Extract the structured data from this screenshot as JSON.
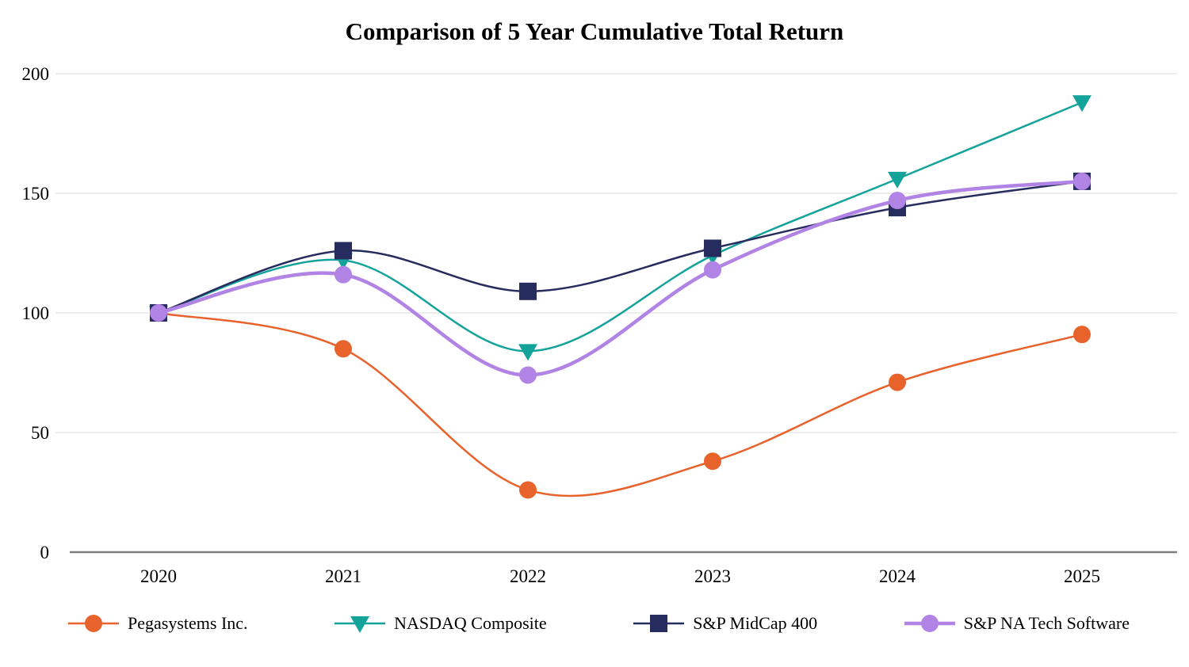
{
  "chart_data": {
    "type": "line",
    "title": "Comparison of 5 Year Cumulative Total Return",
    "xlabel": "",
    "ylabel": "",
    "categories": [
      "2020",
      "2021",
      "2022",
      "2023",
      "2024",
      "2025"
    ],
    "ylim": [
      0,
      200
    ],
    "yticks": [
      0,
      50,
      100,
      150,
      200
    ],
    "grid": true,
    "legend_position": "bottom",
    "series": [
      {
        "name": "Pegasystems Inc.",
        "marker": "circle",
        "color": "#E8622C",
        "line_width": 2.5,
        "values": [
          100,
          85,
          26,
          38,
          71,
          91
        ]
      },
      {
        "name": "NASDAQ Composite",
        "marker": "triangle-down",
        "color": "#14A39B",
        "line_width": 2.5,
        "values": [
          100,
          122,
          84,
          124,
          156,
          188
        ]
      },
      {
        "name": "S&P MidCap 400",
        "marker": "square",
        "color": "#272C5E",
        "line_width": 2.5,
        "values": [
          100,
          126,
          109,
          127,
          144,
          155
        ]
      },
      {
        "name": "S&P NA Tech Software",
        "marker": "circle",
        "color": "#B083E5",
        "line_width": 4.5,
        "values": [
          100,
          116,
          74,
          118,
          147,
          155
        ]
      }
    ],
    "axis_color": "#7F7F7F",
    "grid_color": "#E7E7E7",
    "tick_label_color": "#000000"
  }
}
